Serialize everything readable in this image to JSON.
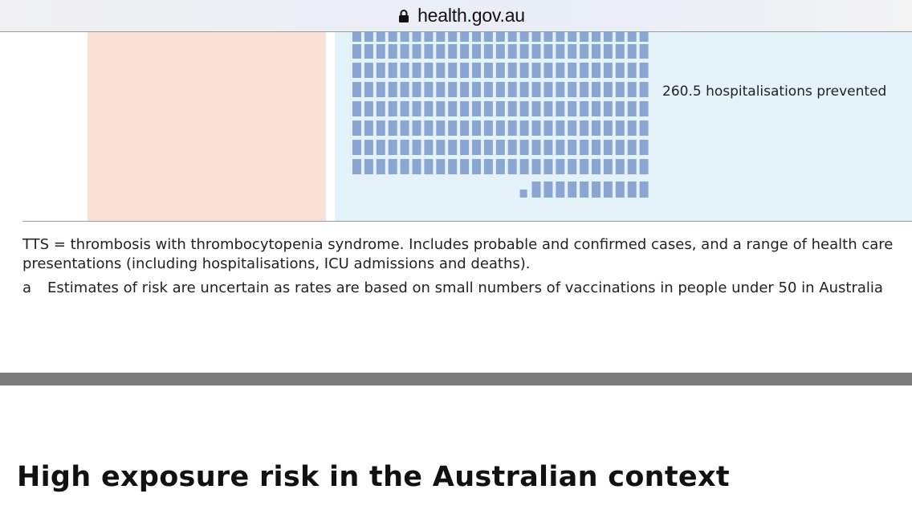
{
  "browser": {
    "url": "health.gov.au"
  },
  "infographic": {
    "prevented_label": "260.5 hospitalisations prevented",
    "icon_color": "#8aa7d4",
    "left_panel_color": "#fae1d5",
    "right_panel_color": "#e4f3fa"
  },
  "notes": {
    "tts_definition": "TTS = thrombosis with thrombocytopenia syndrome. Includes probable and confirmed cases, and a range of health care presentations (including hospitalisations, ICU admissions and deaths).",
    "footnote_marker": "a",
    "footnote_text": "Estimates of risk are uncertain as rates are based on small numbers of vaccinations in people under 50 in Australia"
  },
  "section": {
    "heading": "High exposure risk in the Australian context"
  }
}
